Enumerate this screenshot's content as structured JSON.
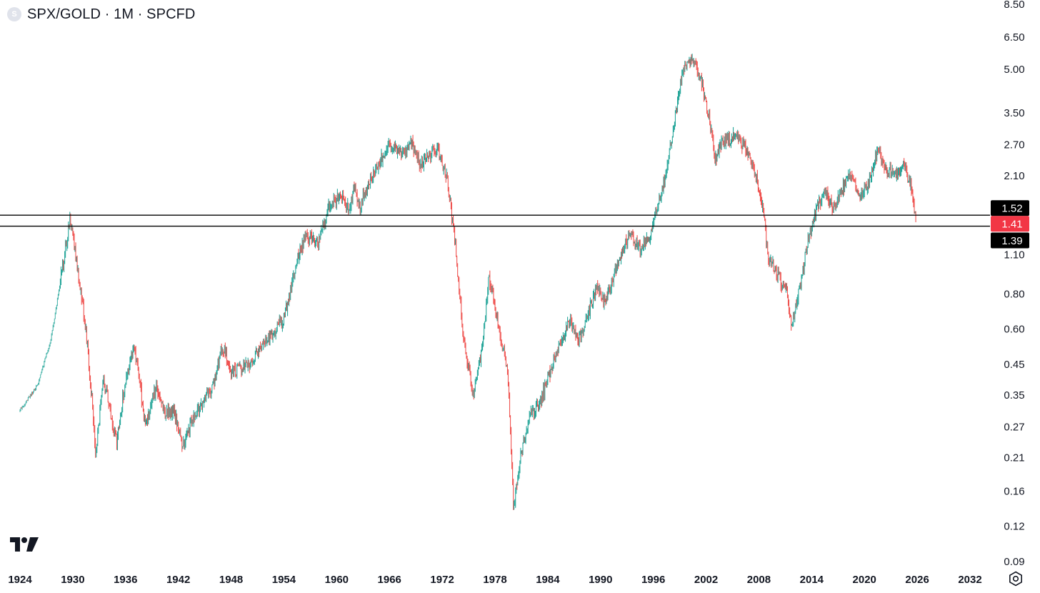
{
  "header": {
    "symbol_badge": "S",
    "title": "SPX/GOLD · 1M · SPCFD"
  },
  "icons": {
    "logo": "tradingview-logo-icon",
    "settings": "gear-icon"
  },
  "colors": {
    "up": "#26a69a",
    "down": "#ef5350",
    "line": "#000000",
    "last_price_bg": "#f23645",
    "level_bg": "#000000",
    "axis_text": "#131722"
  },
  "chart_data": {
    "type": "candlestick",
    "scale": "log",
    "grid": false,
    "title": "SPX/GOLD · 1M · SPCFD",
    "x_ticks": [
      "1924",
      "1930",
      "1936",
      "1942",
      "1948",
      "1954",
      "1960",
      "1966",
      "1972",
      "1978",
      "1984",
      "1990",
      "1996",
      "2002",
      "2008",
      "2014",
      "2020",
      "2026",
      "2032"
    ],
    "y_ticks": [
      "8.50",
      "6.50",
      "5.00",
      "3.50",
      "2.70",
      "2.10",
      "1.10",
      "0.80",
      "0.60",
      "0.45",
      "0.35",
      "0.27",
      "0.21",
      "0.16",
      "0.12",
      "0.09"
    ],
    "xlim": [
      1924,
      2032
    ],
    "ylim": [
      0.09,
      8.5
    ],
    "horizontal_lines": [
      {
        "value": 1.52,
        "label": "1.52"
      },
      {
        "value": 1.39,
        "label": "1.39"
      }
    ],
    "last_price": {
      "value": 1.41,
      "label": "1.41"
    },
    "price_path": [
      [
        1924.0,
        0.31
      ],
      [
        1926.0,
        0.38
      ],
      [
        1927.5,
        0.55
      ],
      [
        1928.5,
        0.85
      ],
      [
        1929.7,
        1.5
      ],
      [
        1930.5,
        1.0
      ],
      [
        1931.5,
        0.6
      ],
      [
        1932.3,
        0.3
      ],
      [
        1932.6,
        0.22
      ],
      [
        1933.5,
        0.4
      ],
      [
        1934.3,
        0.3
      ],
      [
        1935.0,
        0.24
      ],
      [
        1936.0,
        0.4
      ],
      [
        1937.0,
        0.52
      ],
      [
        1938.3,
        0.27
      ],
      [
        1939.5,
        0.38
      ],
      [
        1940.5,
        0.3
      ],
      [
        1941.5,
        0.31
      ],
      [
        1942.4,
        0.23
      ],
      [
        1944.0,
        0.3
      ],
      [
        1946.0,
        0.38
      ],
      [
        1947.0,
        0.52
      ],
      [
        1948.0,
        0.42
      ],
      [
        1950.0,
        0.45
      ],
      [
        1952.0,
        0.55
      ],
      [
        1954.0,
        0.65
      ],
      [
        1955.5,
        1.05
      ],
      [
        1956.5,
        1.3
      ],
      [
        1957.8,
        1.2
      ],
      [
        1959.0,
        1.6
      ],
      [
        1960.5,
        1.8
      ],
      [
        1961.5,
        1.55
      ],
      [
        1962.0,
        2.0
      ],
      [
        1962.5,
        1.6
      ],
      [
        1963.5,
        1.9
      ],
      [
        1965.0,
        2.4
      ],
      [
        1966.0,
        2.7
      ],
      [
        1967.5,
        2.5
      ],
      [
        1968.5,
        2.75
      ],
      [
        1969.5,
        2.3
      ],
      [
        1970.5,
        2.5
      ],
      [
        1971.5,
        2.6
      ],
      [
        1972.5,
        2.1
      ],
      [
        1973.5,
        1.2
      ],
      [
        1974.3,
        0.6
      ],
      [
        1975.5,
        0.35
      ],
      [
        1976.5,
        0.5
      ],
      [
        1977.3,
        0.93
      ],
      [
        1978.5,
        0.6
      ],
      [
        1979.5,
        0.4
      ],
      [
        1980.1,
        0.14
      ],
      [
        1981.0,
        0.22
      ],
      [
        1982.0,
        0.3
      ],
      [
        1983.0,
        0.32
      ],
      [
        1984.0,
        0.4
      ],
      [
        1985.0,
        0.5
      ],
      [
        1986.5,
        0.64
      ],
      [
        1987.5,
        0.55
      ],
      [
        1988.5,
        0.65
      ],
      [
        1989.5,
        0.85
      ],
      [
        1990.5,
        0.75
      ],
      [
        1992.0,
        1.05
      ],
      [
        1993.3,
        1.3
      ],
      [
        1994.5,
        1.15
      ],
      [
        1995.5,
        1.25
      ],
      [
        1996.5,
        1.6
      ],
      [
        1997.5,
        2.2
      ],
      [
        1998.5,
        3.5
      ],
      [
        1999.5,
        5.2
      ],
      [
        2000.5,
        5.5
      ],
      [
        2001.5,
        4.5
      ],
      [
        2002.5,
        3.2
      ],
      [
        2003.0,
        2.4
      ],
      [
        2004.0,
        2.8
      ],
      [
        2005.5,
        2.9
      ],
      [
        2006.5,
        2.6
      ],
      [
        2007.5,
        2.2
      ],
      [
        2008.5,
        1.6
      ],
      [
        2009.0,
        1.1
      ],
      [
        2010.0,
        0.95
      ],
      [
        2011.2,
        0.8
      ],
      [
        2011.7,
        0.6
      ],
      [
        2012.5,
        0.8
      ],
      [
        2013.5,
        1.2
      ],
      [
        2014.5,
        1.6
      ],
      [
        2015.5,
        1.85
      ],
      [
        2016.5,
        1.6
      ],
      [
        2017.5,
        1.9
      ],
      [
        2018.5,
        2.1
      ],
      [
        2019.5,
        1.8
      ],
      [
        2020.5,
        2.0
      ],
      [
        2021.5,
        2.6
      ],
      [
        2022.5,
        2.2
      ],
      [
        2023.5,
        2.1
      ],
      [
        2024.5,
        2.3
      ],
      [
        2025.3,
        1.9
      ],
      [
        2025.9,
        1.41
      ]
    ]
  }
}
